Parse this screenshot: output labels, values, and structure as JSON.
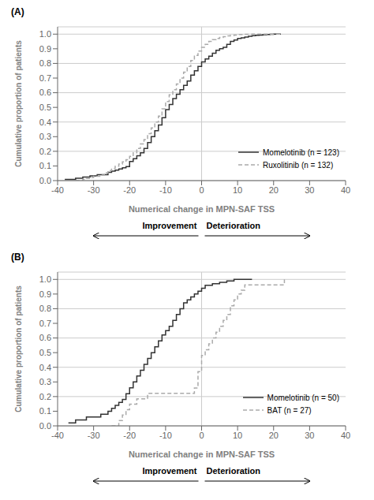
{
  "chart_data": [
    {
      "type": "step",
      "title": "(A)",
      "xlabel": "Numerical change in MPN-SAF TSS",
      "ylabel": "Cumulative proportion of patients",
      "xlim": [
        -40,
        40
      ],
      "ylim": [
        0.0,
        1.05
      ],
      "xticks": [
        -40,
        -30,
        -20,
        -10,
        0,
        10,
        20,
        30,
        40
      ],
      "yticks": [
        {
          "value": 0.0,
          "label": "0.0"
        },
        0.1,
        0.2,
        0.3,
        0.4,
        0.5,
        0.6,
        0.7,
        0.8,
        0.9,
        {
          "value": 1.0,
          "label": "1.0"
        }
      ],
      "grid": "y",
      "legend": "lower right",
      "vlines": [
        0
      ],
      "annotations": [
        {
          "text": "Improvement",
          "direction": "left"
        },
        {
          "text": "Deterioration",
          "direction": "right"
        }
      ],
      "series": [
        {
          "name": "Momelotinib (n = 123)",
          "color": "#333333",
          "line_style": "solid",
          "x": [
            -38,
            -35,
            -33,
            -32,
            -31,
            -30,
            -29,
            -28,
            -27,
            -26,
            -25,
            -24,
            -23,
            -22,
            -21,
            -20,
            -19,
            -18,
            -17,
            -16,
            -15,
            -14,
            -13,
            -12,
            -11,
            -10,
            -9,
            -8,
            -7,
            -6,
            -5,
            -4,
            -3,
            -2,
            -1,
            0,
            1,
            2,
            3,
            4,
            5,
            6,
            7,
            8,
            9,
            10,
            11,
            12,
            13,
            14,
            15,
            16,
            17,
            18,
            19,
            20,
            21,
            22
          ],
          "values": [
            0.008,
            0.016,
            0.024,
            0.024,
            0.032,
            0.032,
            0.04,
            0.04,
            0.04,
            0.056,
            0.064,
            0.072,
            0.08,
            0.088,
            0.096,
            0.13,
            0.15,
            0.17,
            0.19,
            0.22,
            0.26,
            0.3,
            0.34,
            0.38,
            0.43,
            0.485,
            0.52,
            0.56,
            0.59,
            0.62,
            0.65,
            0.68,
            0.72,
            0.75,
            0.78,
            0.81,
            0.83,
            0.85,
            0.87,
            0.89,
            0.9,
            0.91,
            0.93,
            0.95,
            0.96,
            0.97,
            0.975,
            0.98,
            0.985,
            0.99,
            0.992,
            0.994,
            0.996,
            0.998,
            0.999,
            1.0,
            1.0,
            1.0
          ]
        },
        {
          "name": "Ruxolitinib (n = 132)",
          "color": "#aaaaaa",
          "line_style": "dashed",
          "x": [
            -35,
            -33,
            -32,
            -31,
            -30,
            -28,
            -27,
            -26,
            -25,
            -24,
            -23,
            -22,
            -21,
            -20,
            -19,
            -18,
            -17,
            -16,
            -15,
            -14,
            -13,
            -12,
            -11,
            -10,
            -9,
            -8,
            -7,
            -6,
            -5,
            -4,
            -3,
            -2,
            -1,
            0,
            1,
            2,
            3,
            4,
            5,
            6,
            7,
            8,
            9,
            10,
            11,
            12,
            13,
            14,
            15,
            16,
            17,
            18,
            19,
            20,
            21,
            22
          ],
          "values": [
            0.0,
            0.008,
            0.015,
            0.022,
            0.03,
            0.038,
            0.053,
            0.068,
            0.083,
            0.098,
            0.113,
            0.128,
            0.143,
            0.165,
            0.19,
            0.22,
            0.25,
            0.28,
            0.32,
            0.36,
            0.4,
            0.44,
            0.49,
            0.54,
            0.585,
            0.62,
            0.66,
            0.7,
            0.74,
            0.78,
            0.82,
            0.855,
            0.885,
            0.91,
            0.93,
            0.95,
            0.962,
            0.97,
            0.977,
            0.983,
            0.988,
            0.991,
            0.994,
            0.997,
            0.998,
            0.999,
            0.999,
            1.0,
            1.0,
            1.0,
            1.0,
            1.0,
            1.0,
            1.0,
            1.0,
            1.0
          ]
        }
      ]
    },
    {
      "type": "step",
      "title": "(B)",
      "xlabel": "Numerical change in MPN-SAF TSS",
      "ylabel": "Cumulative proportion of patients",
      "xlim": [
        -40,
        40
      ],
      "ylim": [
        0.0,
        1.05
      ],
      "xticks": [
        -40,
        -30,
        -20,
        -10,
        0,
        10,
        20,
        30,
        40
      ],
      "yticks": [
        {
          "value": 0.0,
          "label": "0.0"
        },
        0.1,
        0.2,
        0.3,
        0.4,
        0.5,
        0.6,
        0.7,
        0.8,
        0.9,
        {
          "value": 1.0,
          "label": "1.0"
        }
      ],
      "grid": "y",
      "legend": "lower right",
      "vlines": [
        0
      ],
      "annotations": [
        {
          "text": "Improvement",
          "direction": "left"
        },
        {
          "text": "Deterioration",
          "direction": "right"
        }
      ],
      "series": [
        {
          "name": "Momelotinib (n = 50)",
          "color": "#333333",
          "line_style": "solid",
          "x": [
            -37,
            -35,
            -32,
            -30,
            -28,
            -26,
            -25,
            -24,
            -23,
            -22,
            -21,
            -20,
            -19,
            -18,
            -17,
            -16,
            -15,
            -14,
            -13,
            -12,
            -11,
            -10,
            -9,
            -8,
            -7,
            -6,
            -5,
            -4,
            -3,
            -2,
            -1,
            0,
            1,
            2,
            3,
            4,
            5,
            6,
            7,
            8,
            9,
            10,
            11,
            12,
            13,
            14
          ],
          "values": [
            0.02,
            0.04,
            0.06,
            0.06,
            0.08,
            0.1,
            0.12,
            0.14,
            0.16,
            0.18,
            0.22,
            0.26,
            0.3,
            0.34,
            0.38,
            0.42,
            0.46,
            0.5,
            0.54,
            0.58,
            0.62,
            0.65,
            0.68,
            0.72,
            0.76,
            0.8,
            0.84,
            0.86,
            0.88,
            0.9,
            0.92,
            0.94,
            0.96,
            0.96,
            0.97,
            0.97,
            0.98,
            0.98,
            0.99,
            0.99,
            1.0,
            1.0,
            1.0,
            1.0,
            1.0,
            1.0
          ]
        },
        {
          "name": "BAT (n = 27)",
          "color": "#aaaaaa",
          "line_style": "dashed",
          "x": [
            -25,
            -23,
            -22,
            -21,
            -20,
            -18,
            -16,
            -15,
            -14,
            -13,
            -12,
            -11,
            -10,
            -9,
            -8,
            -7,
            -6,
            -5,
            -4,
            -3,
            -2,
            -1,
            0,
            1,
            2,
            3,
            4,
            5,
            6,
            7,
            8,
            9,
            10,
            11,
            12,
            13,
            14,
            15,
            16,
            17,
            18,
            19,
            20,
            21,
            22,
            23
          ],
          "values": [
            0.0,
            0.037,
            0.074,
            0.111,
            0.148,
            0.185,
            0.185,
            0.222,
            0.222,
            0.222,
            0.222,
            0.222,
            0.222,
            0.222,
            0.222,
            0.222,
            0.222,
            0.222,
            0.222,
            0.222,
            0.259,
            0.37,
            0.48,
            0.52,
            0.56,
            0.6,
            0.64,
            0.68,
            0.72,
            0.76,
            0.82,
            0.86,
            0.9,
            0.926,
            0.963,
            0.963,
            0.963,
            0.963,
            0.963,
            0.963,
            0.963,
            0.963,
            0.963,
            0.963,
            0.963,
            1.0
          ]
        }
      ]
    }
  ]
}
